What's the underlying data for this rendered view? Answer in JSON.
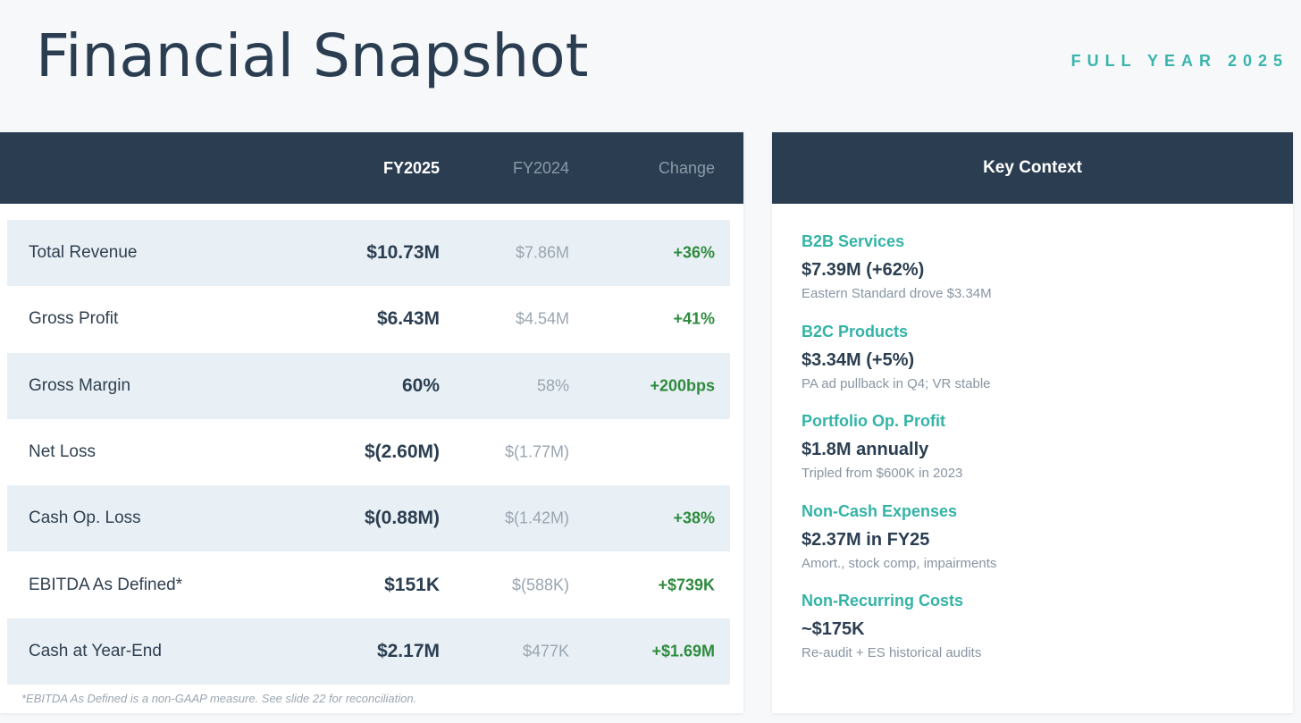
{
  "header": {
    "title": "Financial Snapshot",
    "subtitle": "FULL YEAR 2025"
  },
  "table": {
    "columns": [
      "",
      "FY2025",
      "FY2024",
      "Change"
    ],
    "rows": [
      {
        "label": "Total Revenue",
        "fy2025": "$10.73M",
        "fy2024": "$7.86M",
        "change": "+36%"
      },
      {
        "label": "Gross Profit",
        "fy2025": "$6.43M",
        "fy2024": "$4.54M",
        "change": "+41%"
      },
      {
        "label": "Gross Margin",
        "fy2025": "60%",
        "fy2024": "58%",
        "change": "+200bps"
      },
      {
        "label": "Net Loss",
        "fy2025": "$(2.60M)",
        "fy2024": "$(1.77M)",
        "change": ""
      },
      {
        "label": "Cash Op. Loss",
        "fy2025": "$(0.88M)",
        "fy2024": "$(1.42M)",
        "change": "+38%"
      },
      {
        "label": "EBITDA As Defined*",
        "fy2025": "$151K",
        "fy2024": "$(588K)",
        "change": "+$739K"
      },
      {
        "label": "Cash at Year-End",
        "fy2025": "$2.17M",
        "fy2024": "$477K",
        "change": "+$1.69M"
      }
    ],
    "footnote": "*EBITDA As Defined is a non-GAAP measure. See slide 22 for reconciliation."
  },
  "key_context": {
    "title": "Key Context",
    "items": [
      {
        "title": "B2B Services",
        "value": "$7.39M (+62%)",
        "note": "Eastern Standard drove $3.34M"
      },
      {
        "title": "B2C Products",
        "value": "$3.34M (+5%)",
        "note": "PA ad pullback in Q4; VR stable"
      },
      {
        "title": "Portfolio Op. Profit",
        "value": "$1.8M annually",
        "note": "Tripled from $600K in 2023"
      },
      {
        "title": "Non-Cash Expenses",
        "value": "$2.37M in FY25",
        "note": "Amort., stock comp, impairments"
      },
      {
        "title": "Non-Recurring Costs",
        "value": "~$175K",
        "note": "Re-audit + ES historical audits"
      }
    ]
  },
  "colors": {
    "navy": "#2b3e51",
    "teal": "#3ab5ad",
    "positive_green": "#2e8b3e",
    "row_shade": "#e9f0f5"
  }
}
